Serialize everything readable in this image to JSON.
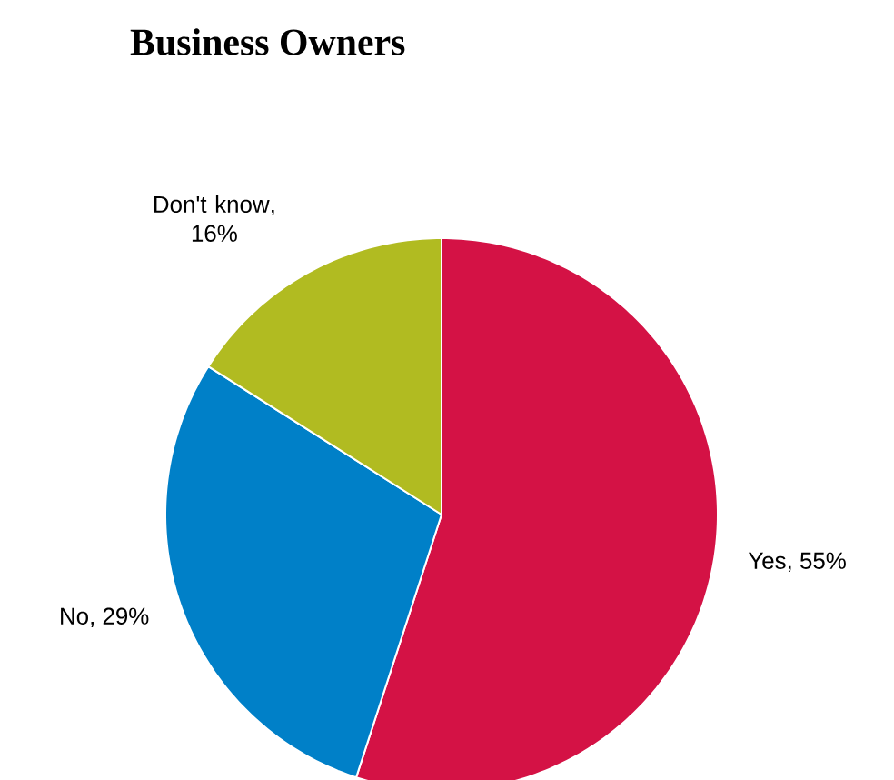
{
  "chart_data": {
    "type": "pie",
    "title": "Business Owners",
    "categories": [
      "Yes",
      "No",
      "Don't know"
    ],
    "values": [
      55,
      29,
      16
    ],
    "value_labels": [
      ", 55%",
      ", 29%",
      ", 16%"
    ],
    "colors": [
      "#d41245",
      "#0080c8",
      "#b1bb21"
    ]
  }
}
